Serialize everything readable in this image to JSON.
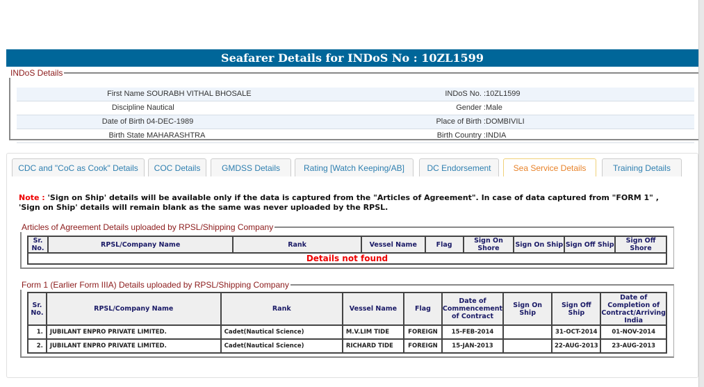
{
  "header": {
    "title": "Seafarer Details for INDoS No : 10ZL1599"
  },
  "indos": {
    "legend": "INDoS Details",
    "rows": [
      {
        "l1": "First Name :",
        "v1": "SOURABH VITHAL BHOSALE",
        "l2": "INDoS No. :",
        "v2": "10ZL1599"
      },
      {
        "l1": "Discipline :",
        "v1": "Nautical",
        "l2": "Gender :",
        "v2": "Male"
      },
      {
        "l1": "Date of Birth :",
        "v1": "04-DEC-1989",
        "l2": "Place of Birth :",
        "v2": "DOMBIVILI"
      },
      {
        "l1": "Birth State :",
        "v1": "MAHARASHTRA",
        "l2": "Birth Country :",
        "v2": "INDIA"
      }
    ]
  },
  "tabs": [
    {
      "label": "CDC and \"CoC as Cook\" Details"
    },
    {
      "label": "COC Details"
    },
    {
      "label": "GMDSS Details"
    },
    {
      "label": "Rating [Watch Keeping/AB]"
    },
    {
      "label": "DC Endorsement"
    },
    {
      "label": "Sea Service Details",
      "active": true
    },
    {
      "label": "Training Details"
    }
  ],
  "note": {
    "prefix": "Note :",
    "text": " 'Sign on Ship' details will be available only if the data is captured from the \"Articles of Agreement\". In case of data captured from \"FORM 1\" , 'Sign on Ship' details will remain blank as the same was never uploaded by the RPSL."
  },
  "articles": {
    "legend": "Articles of Agreement Details uploaded by RPSL/Shipping Company",
    "headers": [
      "Sr. No.",
      "RPSL/Company Name",
      "Rank",
      "Vessel Name",
      "Flag",
      "Sign On Shore",
      "Sign On Ship",
      "Sign Off Ship",
      "Sign Off Shore"
    ],
    "empty": "Details not found"
  },
  "form1": {
    "legend": "Form 1 (Earlier Form IIIA) Details uploaded by RPSL/Shipping Company",
    "headers": [
      "Sr. No.",
      "RPSL/Company Name",
      "Rank",
      "Vessel Name",
      "Flag",
      "Date of Commencement of Contract",
      "Sign On Ship",
      "Sign Off Ship",
      "Date of Completion of Contract/Arriving India"
    ],
    "rows": [
      [
        "1.",
        "JUBILANT ENPRO PRIVATE LIMITED.",
        "Cadet(Nautical Science)",
        "M.V.LIM TIDE",
        "FOREIGN",
        "15-FEB-2014",
        "",
        "31-OCT-2014",
        "01-NOV-2014"
      ],
      [
        "2.",
        "JUBILANT ENPRO PRIVATE LIMITED.",
        "Cadet(Nautical Science)",
        "RICHARD TIDE",
        "FOREIGN",
        "15-JAN-2013",
        "",
        "22-AUG-2013",
        "23-AUG-2013"
      ]
    ]
  }
}
